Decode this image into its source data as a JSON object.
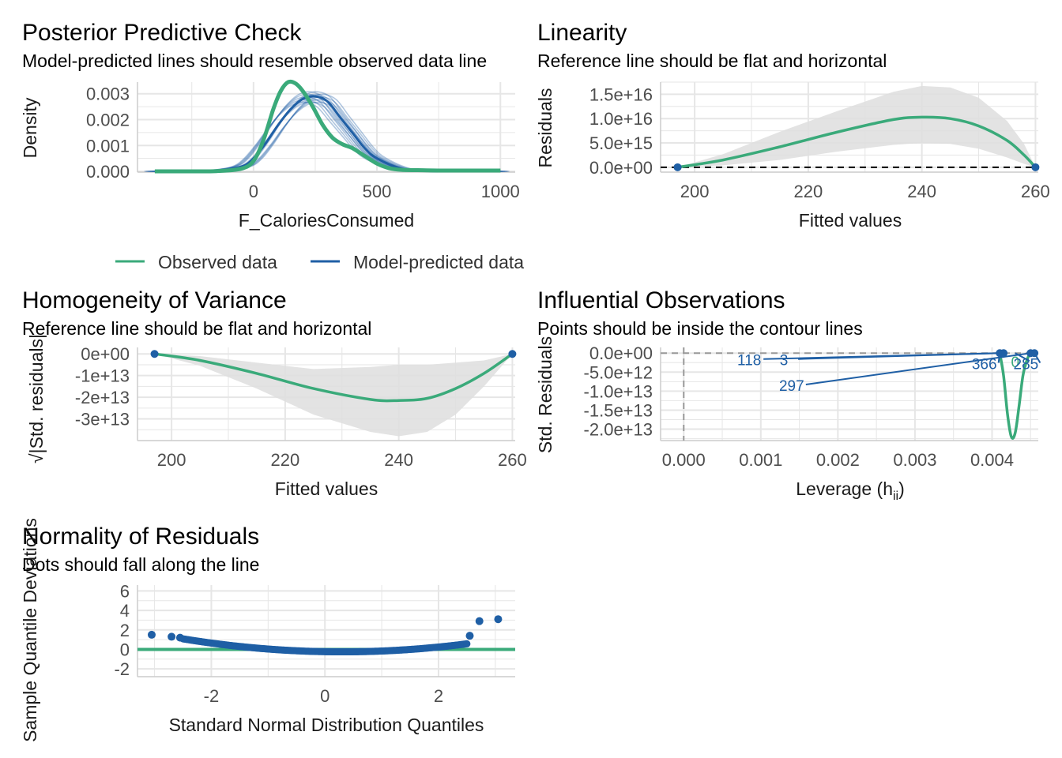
{
  "colors": {
    "observed": "#3aaa7a",
    "predicted": "#1f5fa5",
    "band": "#dedede",
    "grid": "#e6e6e6",
    "ref": "#000000"
  },
  "chart_data": [
    {
      "id": "ppc",
      "type": "line",
      "title": "Posterior Predictive Check",
      "subtitle": "Model-predicted lines should resemble observed data line",
      "xlabel": "F_CaloriesConsumed",
      "ylabel": "Density",
      "xlim": [
        -470,
        1060
      ],
      "ylim": [
        -3e-05,
        0.00345
      ],
      "xticks": [
        0,
        500,
        1000
      ],
      "yticks": [
        0.0,
        0.001,
        0.002,
        0.003
      ],
      "ytick_labels": [
        "0.000",
        "0.001",
        "0.002",
        "0.003"
      ],
      "series": [
        {
          "name": "Model-predicted data",
          "role": "predicted",
          "x": [
            -400,
            -250,
            -150,
            -50,
            0,
            50,
            100,
            150,
            200,
            250,
            300,
            350,
            400,
            450,
            500,
            600,
            700,
            800,
            900,
            1000
          ],
          "y": [
            0.0,
            1e-05,
            3e-05,
            0.00018,
            0.0005,
            0.0011,
            0.0018,
            0.0024,
            0.0028,
            0.0029,
            0.0027,
            0.0021,
            0.0015,
            0.0009,
            0.0005,
            0.0001,
            2e-05,
            0.0,
            0.0,
            0.0
          ]
        },
        {
          "name": "Observed data",
          "role": "observed",
          "x": [
            -400,
            -250,
            -150,
            -50,
            0,
            40,
            80,
            110,
            140,
            170,
            200,
            240,
            280,
            320,
            360,
            400,
            450,
            500,
            550,
            600,
            700,
            800,
            900,
            1000
          ],
          "y": [
            0.0,
            0.0,
            1e-05,
            0.0001,
            0.0004,
            0.0012,
            0.0024,
            0.0031,
            0.00345,
            0.0034,
            0.0031,
            0.0025,
            0.0018,
            0.0013,
            0.00105,
            0.0009,
            0.0006,
            0.0003,
            0.00012,
            6e-05,
            4e-05,
            3e-05,
            3e-05,
            3e-05
          ]
        }
      ],
      "legend": {
        "position": "bottom",
        "entries": [
          "Observed data",
          "Model-predicted data"
        ]
      }
    },
    {
      "id": "linearity",
      "type": "line",
      "title": "Linearity",
      "subtitle": "Reference line should be flat and horizontal",
      "xlabel": "Fitted values",
      "ylabel": "Residuals",
      "xlim": [
        194,
        260.5
      ],
      "ylim": [
        -1000000000000000.0,
        1.75e+16
      ],
      "xticks": [
        200,
        220,
        240,
        260
      ],
      "yticks": [
        0,
        5000000000000000.0,
        1e+16,
        1.5e+16
      ],
      "ytick_labels": [
        "0.0e+00",
        "5.0e+15",
        "1.0e+16",
        "1.5e+16"
      ],
      "reference_y": 0,
      "fit": {
        "x": [
          197,
          205,
          215,
          225,
          235,
          240,
          245,
          250,
          255,
          258,
          260
        ],
        "y": [
          0,
          1500000000000000.0,
          4200000000000000.0,
          7200000000000000.0,
          9800000000000000.0,
          1.03e+16,
          1e+16,
          8500000000000000.0,
          5500000000000000.0,
          2500000000000000.0,
          0
        ]
      },
      "band": {
        "x": [
          197,
          205,
          215,
          225,
          235,
          240,
          245,
          250,
          255,
          258,
          260
        ],
        "lower": [
          0,
          400000000000000.0,
          1500000000000000.0,
          3200000000000000.0,
          4600000000000000.0,
          5000000000000000.0,
          4800000000000000.0,
          3800000000000000.0,
          2000000000000000.0,
          700000000000000.0,
          0
        ],
        "upper": [
          0,
          2700000000000000.0,
          7300000000000000.0,
          1.15e+16,
          1.55e+16,
          1.67e+16,
          1.64e+16,
          1.43e+16,
          9500000000000000.0,
          4800000000000000.0,
          0
        ]
      },
      "points": {
        "x": [
          197,
          260
        ],
        "y": [
          0,
          0
        ]
      }
    },
    {
      "id": "homogeneity",
      "type": "line",
      "title": "Homogeneity of Variance",
      "subtitle": "Reference line should be flat and horizontal",
      "xlabel": "Fitted values",
      "ylabel": "√|Std. residuals|",
      "xlim": [
        194,
        260.5
      ],
      "ylim": [
        -40000000000000.0,
        3000000000000.0
      ],
      "xticks": [
        200,
        220,
        240,
        260
      ],
      "yticks": [
        0,
        -10000000000000.0,
        -20000000000000.0,
        -30000000000000.0
      ],
      "ytick_labels": [
        "0e+00",
        "-1e+13",
        "-2e+13",
        "-3e+13"
      ],
      "fit": {
        "x": [
          197,
          205,
          215,
          225,
          235,
          240,
          245,
          250,
          255,
          260
        ],
        "y": [
          0,
          -3000000000000.0,
          -9000000000000.0,
          -16000000000000.0,
          -21000000000000.0,
          -21500000000000.0,
          -20500000000000.0,
          -16000000000000.0,
          -9000000000000.0,
          0
        ]
      },
      "band": {
        "x": [
          197,
          205,
          215,
          225,
          235,
          240,
          245,
          250,
          255,
          260
        ],
        "lower": [
          0,
          -5500000000000.0,
          -16000000000000.0,
          -28000000000000.0,
          -36000000000000.0,
          -38000000000000.0,
          -36000000000000.0,
          -28000000000000.0,
          -15000000000000.0,
          0
        ],
        "upper": [
          0,
          -1000000000000.0,
          -4000000000000.0,
          -7000000000000.0,
          -6000000000000.0,
          -5000000000000.0,
          -5000000000000.0,
          -4000000000000.0,
          -3000000000000.0,
          0
        ]
      },
      "points": {
        "x": [
          197,
          260
        ],
        "y": [
          0,
          0
        ]
      }
    },
    {
      "id": "influential",
      "type": "scatter",
      "title": "Influential Observations",
      "subtitle": "Points should be inside the contour lines",
      "xlabel": "Leverage (h",
      "xlabel_sub": "ii",
      "xlabel_end": ")",
      "ylabel": "Std. Residuals",
      "xlim": [
        -0.0003,
        0.0046
      ],
      "ylim": [
        -23000000000000.0,
        1500000000000.0
      ],
      "xticks": [
        0.0,
        0.001,
        0.002,
        0.003,
        0.004
      ],
      "xtick_labels": [
        "0.000",
        "0.001",
        "0.002",
        "0.003",
        "0.004"
      ],
      "yticks": [
        0,
        -5000000000000.0,
        -10000000000000.0,
        -15000000000000.0,
        -20000000000000.0
      ],
      "ytick_labels": [
        "0.0e+00",
        "-5.0e+12",
        "-1.0e+13",
        "-1.5e+13",
        "-2.0e+13"
      ],
      "reference_x": 0,
      "reference_y": 0,
      "points": {
        "x": [
          0.0041,
          0.00415,
          0.0045,
          0.00455
        ],
        "y": [
          0,
          0,
          0,
          0
        ]
      },
      "fit": {
        "x": [
          0.0041,
          0.00415,
          0.0042,
          0.00425,
          0.0043,
          0.00435,
          0.0044,
          0.00445,
          0.0045,
          0.00455
        ],
        "y": [
          0,
          -6000000000000.0,
          -16000000000000.0,
          -22000000000000.0,
          -21000000000000.0,
          -14000000000000.0,
          -6000000000000.0,
          -2000000000000.0,
          0,
          0
        ]
      },
      "labels": [
        {
          "text": "118",
          "x": 0.00085,
          "y": -2800000000000.0,
          "tx": 0.0041,
          "ty": 0
        },
        {
          "text": "3",
          "x": 0.0013,
          "y": -2800000000000.0,
          "tx": 0.0041,
          "ty": 0
        },
        {
          "text": "297",
          "x": 0.0014,
          "y": -9500000000000.0,
          "tx": 0.0045,
          "ty": 0
        },
        {
          "text": "366",
          "x": 0.0039,
          "y": -3800000000000.0,
          "tx": 0.0041,
          "ty": 0
        },
        {
          "text": "0",
          "x": 0.0043,
          "y": -3300000000000.0,
          "tx": 0.0043,
          "ty": 0
        },
        {
          "text": "285",
          "x": 0.00444,
          "y": -3800000000000.0,
          "tx": 0.00455,
          "ty": 0
        }
      ]
    },
    {
      "id": "normality",
      "type": "scatter",
      "title": "Normality of Residuals",
      "subtitle": "Dots should fall along the line",
      "xlabel": "Standard Normal Distribution Quantiles",
      "ylabel": "Sample Quantile Deviations",
      "xlim": [
        -3.3,
        3.35
      ],
      "ylim": [
        -2.8,
        6.6
      ],
      "xticks": [
        -2,
        0,
        2
      ],
      "yticks": [
        -2,
        0,
        2,
        4,
        6
      ],
      "reference_y": 0,
      "qq": {
        "x_range": [
          -3.05,
          3.05
        ],
        "n": 400
      },
      "outliers": {
        "x": [
          -3.05,
          -2.7,
          -2.55,
          2.55,
          2.72,
          3.05
        ],
        "y": [
          1.5,
          1.3,
          1.2,
          1.4,
          2.9,
          3.1
        ]
      }
    }
  ]
}
